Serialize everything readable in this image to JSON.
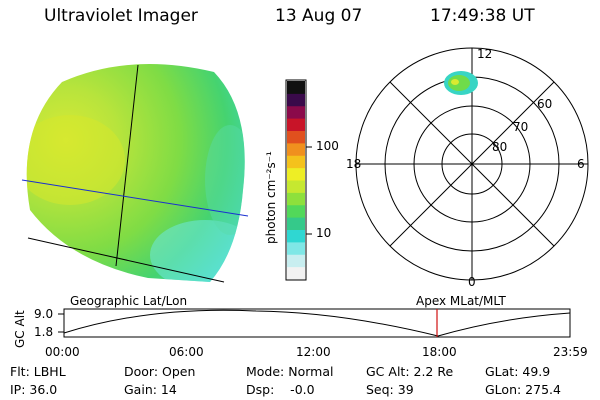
{
  "header": {
    "instrument": "Ultraviolet Imager",
    "date": "13 Aug 07",
    "time": "17:49:38 UT"
  },
  "colorbar": {
    "unit_label": "photon cm⁻²s⁻¹",
    "ticks": [
      {
        "label": "100",
        "value": 100
      },
      {
        "label": "10",
        "value": 10
      }
    ],
    "colors": [
      "#f2f2f2",
      "#c8eef0",
      "#7fe7e6",
      "#2fd7d2",
      "#35c98a",
      "#52d85a",
      "#8ee03c",
      "#c6e830",
      "#eeee25",
      "#f4c21c",
      "#f0901e",
      "#e0501e",
      "#c81428",
      "#8a0a4a",
      "#3a0a4a",
      "#101010"
    ]
  },
  "polar_plot": {
    "mlt_labels": {
      "top": "12",
      "right": "6",
      "bottom": "0",
      "left": "18"
    },
    "lat_labels": [
      "60",
      "70",
      "80"
    ]
  },
  "timeline": {
    "left_label": "Geographic Lat/Lon",
    "right_label": "Apex MLat/MLT",
    "y_axis_title": "GC Alt",
    "y_ticks": [
      "9.0",
      "1.8"
    ],
    "x_ticks": [
      "00:00",
      "06:00",
      "12:00",
      "18:00",
      "23:59"
    ],
    "marker_color": "#d01010"
  },
  "info": {
    "flt": "Flt: LBHL",
    "door": "Door: Open",
    "mode": "Mode: Normal",
    "gc_alt": "GC Alt: 2.2 Re",
    "glat": "GLat:  49.9",
    "ip": "IP: 36.0",
    "gain": "Gain: 14",
    "dsp": "Dsp:    -0.0",
    "seq": "Seq: 39",
    "glon": "GLon: 275.4"
  }
}
